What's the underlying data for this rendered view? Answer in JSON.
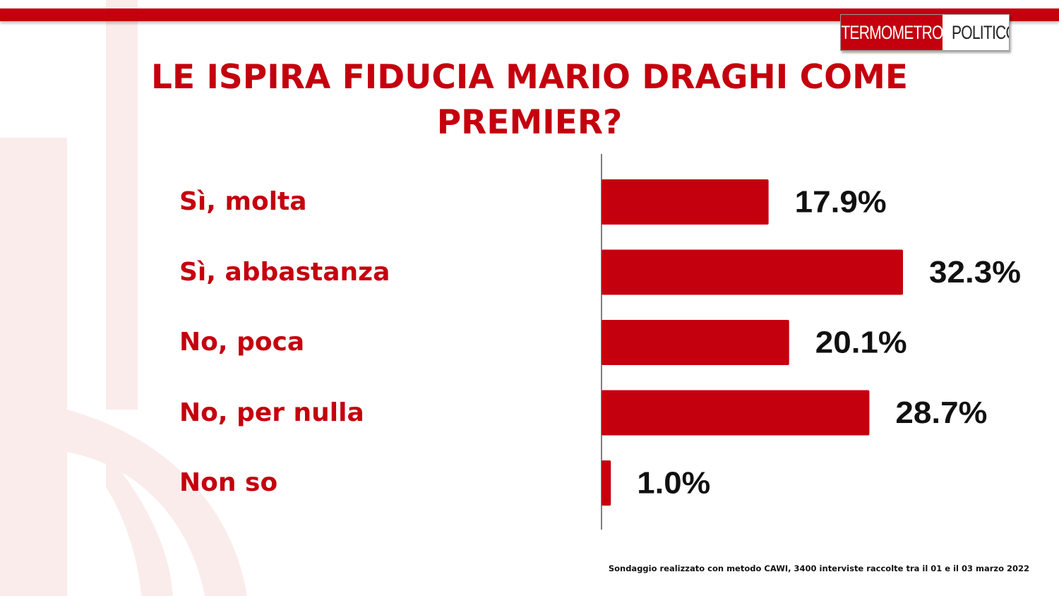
{
  "logo": {
    "part1": "TERMOMETRO",
    "part2": "POLITICO"
  },
  "title": "LE ISPIRA FIDUCIA MARIO DRAGHI COME PREMIER?",
  "footer": "Sondaggio realizzato con metodo CAWI, 3400 interviste raccolte tra il 01 e il 03 marzo 2022",
  "colors": {
    "accent": "#c4000e",
    "bar": "#c4000e",
    "value_text": "#111111"
  },
  "chart_data": {
    "type": "bar",
    "orientation": "horizontal",
    "categories": [
      "Sì, molta",
      "Sì, abbastanza",
      "No, poca",
      "No, per nulla",
      "Non so"
    ],
    "values": [
      17.9,
      32.3,
      20.1,
      28.7,
      1.0
    ],
    "value_labels": [
      "17.9%",
      "32.3%",
      "20.1%",
      "28.7%",
      "1.0%"
    ],
    "xlim": [
      0,
      32.3
    ],
    "grid": false,
    "legend": "none"
  }
}
